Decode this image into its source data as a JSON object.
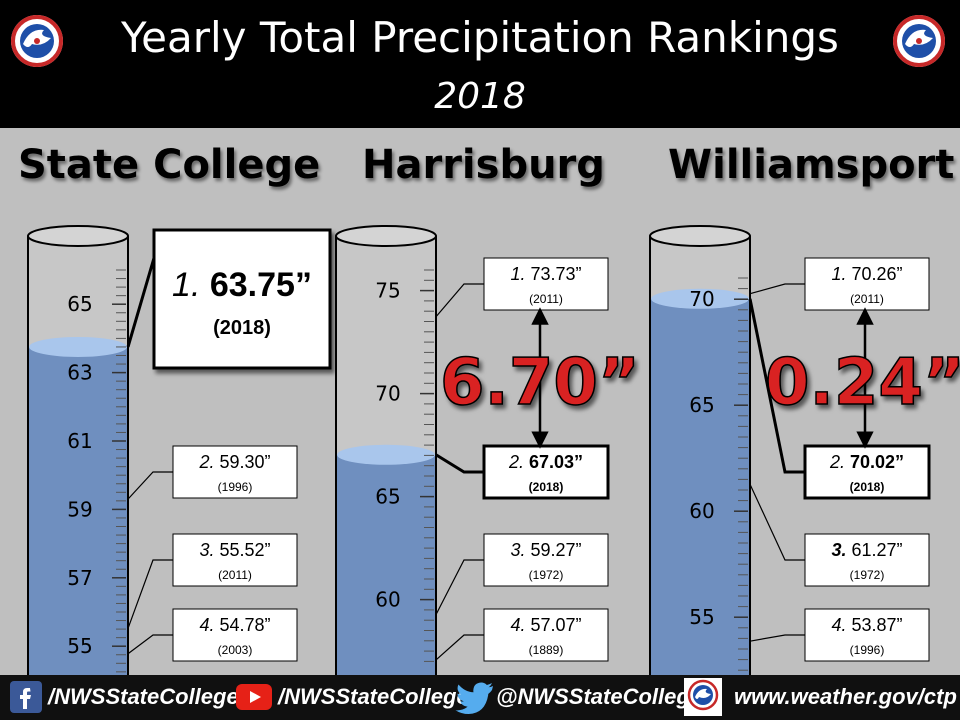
{
  "header": {
    "title": "Yearly Total Precipitation Rankings",
    "subtitle": "2018",
    "colors": {
      "background": "#000000",
      "text": "#ffffff"
    }
  },
  "chart_data": [
    {
      "type": "bar",
      "title": "State College",
      "ylim": [
        54,
        66
      ],
      "ticks": [
        "55",
        "57",
        "59",
        "61",
        "63",
        "65"
      ],
      "value_2018": 63.75,
      "rankings": [
        {
          "rank": "1.",
          "value": "63.75”",
          "year": "(2018)",
          "amount": 63.75,
          "highlight": true
        },
        {
          "rank": "2.",
          "value": "59.30”",
          "year": "(1996)",
          "amount": 59.3,
          "highlight": false
        },
        {
          "rank": "3.",
          "value": "55.52”",
          "year": "(2011)",
          "amount": 55.52,
          "highlight": false
        },
        {
          "rank": "4.",
          "value": "54.78”",
          "year": "(2003)",
          "amount": 54.78,
          "highlight": false
        }
      ]
    },
    {
      "type": "bar",
      "title": "Harrisburg",
      "ylim": [
        57,
        76
      ],
      "ticks": [
        "60",
        "65",
        "70",
        "75"
      ],
      "value_2018": 67.03,
      "difference": "6.70”",
      "rankings": [
        {
          "rank": "1.",
          "value": "73.73”",
          "year": "(2011)",
          "amount": 73.73,
          "highlight": false
        },
        {
          "rank": "2.",
          "value": "67.03”",
          "year": "(2018)",
          "amount": 67.03,
          "highlight": true
        },
        {
          "rank": "3.",
          "value": "59.27”",
          "year": "(1972)",
          "amount": 59.27,
          "highlight": false
        },
        {
          "rank": "4.",
          "value": "57.07”",
          "year": "(1889)",
          "amount": 57.07,
          "highlight": false
        }
      ]
    },
    {
      "type": "bar",
      "title": "Williamsport",
      "ylim": [
        51,
        71
      ],
      "ticks": [
        "55",
        "60",
        "65",
        "70"
      ],
      "value_2018": 70.02,
      "difference": "0.24”",
      "rankings": [
        {
          "rank": "1.",
          "value": "70.26”",
          "year": "(2011)",
          "amount": 70.26,
          "highlight": false
        },
        {
          "rank": "2.",
          "value": "70.02”",
          "year": "(2018)",
          "amount": 70.02,
          "highlight": true
        },
        {
          "rank": "3.",
          "value": "61.27”",
          "year": "(1972)",
          "amount": 61.27,
          "highlight": false
        },
        {
          "rank": "4.",
          "value": "53.87”",
          "year": "(1996)",
          "amount": 53.87,
          "highlight": false
        }
      ]
    }
  ],
  "colors": {
    "water": "#6f8fbf",
    "water_top": "#a9c6ec",
    "difference": "#d92020",
    "background": "#bfbfbf"
  },
  "footer": {
    "facebook": "/NWSStateCollege",
    "youtube": "/NWSStateCollege",
    "twitter": "@NWSStateCollege",
    "website": "www.weather.gov/ctp"
  }
}
